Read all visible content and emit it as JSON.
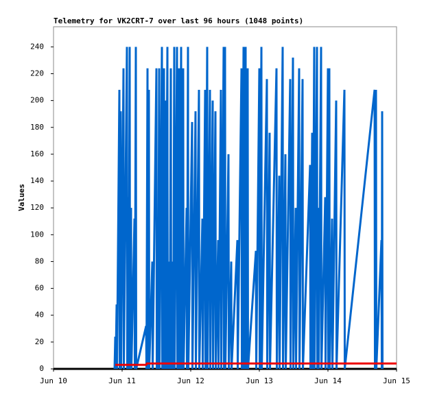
{
  "chart_data": {
    "type": "line",
    "title": "Telemetry for VK2CRT-7 over last 96 hours (1048 points)",
    "y_label": "Values",
    "xlim": [
      10,
      15
    ],
    "xticks": [
      {
        "value": 10,
        "label": "Jun 10"
      },
      {
        "value": 11,
        "label": "Jun 11"
      },
      {
        "value": 12,
        "label": "Jun 12"
      },
      {
        "value": 13,
        "label": "Jun 13"
      },
      {
        "value": 14,
        "label": "Jun 14"
      },
      {
        "value": 15,
        "label": "Jun 15"
      }
    ],
    "ylim": [
      0,
      255
    ],
    "yticks": [
      0,
      20,
      40,
      60,
      80,
      100,
      120,
      140,
      160,
      180,
      200,
      220,
      240
    ],
    "grid": false,
    "series": [
      {
        "color": "#000000",
        "x": [
          10,
          15
        ],
        "values": [
          0,
          0
        ]
      },
      {
        "color": "#0066cc",
        "x": [
          10.89,
          10.9,
          10.905,
          10.92,
          10.925,
          10.96,
          10.965,
          10.98,
          10.985,
          11.02,
          11.025,
          11.07,
          11.075,
          11.09,
          11.095,
          11.11,
          11.115,
          11.13,
          11.135,
          11.18,
          11.185,
          11.2,
          11.205,
          11.35,
          11.355,
          11.37,
          11.375,
          11.39,
          11.395,
          11.44,
          11.445,
          11.5,
          11.505,
          11.52,
          11.525,
          11.54,
          11.545,
          11.58,
          11.585,
          11.61,
          11.615,
          11.63,
          11.635,
          11.66,
          11.665,
          11.69,
          11.695,
          11.71,
          11.715,
          11.74,
          11.745,
          11.76,
          11.765,
          11.8,
          11.805,
          11.83,
          11.835,
          11.86,
          11.865,
          11.89,
          11.895,
          11.94,
          11.945,
          11.96,
          11.965,
          12.02,
          12.025,
          12.07,
          12.075,
          12.12,
          12.125,
          12.17,
          12.175,
          12.21,
          12.215,
          12.24,
          12.245,
          12.28,
          12.285,
          12.32,
          12.325,
          12.36,
          12.365,
          12.4,
          12.405,
          12.44,
          12.445,
          12.48,
          12.485,
          12.5,
          12.505,
          12.55,
          12.555,
          12.59,
          12.595,
          12.68,
          12.685,
          12.74,
          12.745,
          12.77,
          12.775,
          12.8,
          12.805,
          12.83,
          12.835,
          12.95,
          12.955,
          13.0,
          13.005,
          13.03,
          13.035,
          13.11,
          13.115,
          13.15,
          13.155,
          13.25,
          13.255,
          13.29,
          13.295,
          13.34,
          13.345,
          13.38,
          13.385,
          13.45,
          13.455,
          13.49,
          13.495,
          13.53,
          13.535,
          13.58,
          13.585,
          13.63,
          13.635,
          13.74,
          13.745,
          13.77,
          13.775,
          13.8,
          13.805,
          13.84,
          13.845,
          13.86,
          13.865,
          13.9,
          13.905,
          13.96,
          13.965,
          14.0,
          14.005,
          14.02,
          14.025,
          14.06,
          14.065,
          14.12,
          14.125,
          14.24,
          14.245,
          14.68,
          14.685,
          14.7,
          14.705,
          14.78,
          14.785,
          14.79,
          14.795
        ],
        "values": [
          0,
          24,
          0,
          48,
          0,
          208,
          0,
          192,
          0,
          224,
          0,
          240,
          0,
          128,
          0,
          240,
          0,
          120,
          0,
          112,
          0,
          240,
          0,
          32,
          0,
          224,
          0,
          208,
          0,
          80,
          0,
          224,
          0,
          112,
          0,
          224,
          0,
          240,
          0,
          224,
          0,
          200,
          0,
          240,
          0,
          80,
          0,
          224,
          0,
          80,
          0,
          240,
          0,
          240,
          0,
          224,
          0,
          240,
          0,
          224,
          0,
          120,
          0,
          240,
          0,
          184,
          0,
          192,
          0,
          208,
          0,
          112,
          0,
          208,
          0,
          240,
          0,
          208,
          0,
          200,
          0,
          192,
          0,
          96,
          0,
          208,
          0,
          240,
          0,
          240,
          0,
          160,
          0,
          80,
          0,
          96,
          0,
          224,
          0,
          240,
          0,
          240,
          0,
          224,
          0,
          88,
          0,
          224,
          0,
          240,
          0,
          216,
          0,
          176,
          0,
          224,
          0,
          144,
          0,
          240,
          0,
          160,
          0,
          216,
          0,
          232,
          0,
          120,
          0,
          224,
          0,
          216,
          0,
          152,
          0,
          176,
          0,
          240,
          0,
          240,
          0,
          120,
          0,
          240,
          0,
          128,
          0,
          224,
          0,
          224,
          0,
          112,
          0,
          200,
          0,
          208,
          0,
          208,
          0,
          208,
          0,
          96,
          0,
          192,
          0
        ]
      },
      {
        "color": "#ee0000",
        "x": [
          10.9,
          11.35,
          11.36,
          15
        ],
        "values": [
          3,
          3,
          4,
          4
        ]
      }
    ]
  }
}
